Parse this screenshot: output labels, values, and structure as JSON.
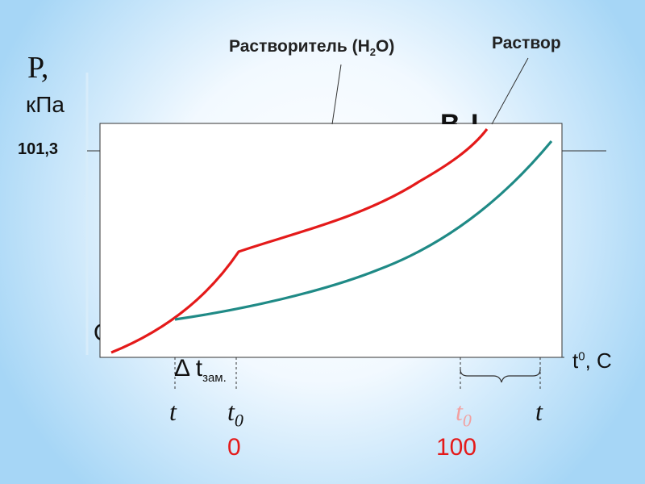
{
  "labels": {
    "y_axis": "P,",
    "y_unit": "кПа",
    "y_tick": "101,3",
    "solvent_prefix": "Растворитель (H",
    "solvent_sub": "2",
    "solvent_suffix": "O)",
    "solution": "Раствор",
    "x_axis_main": "t",
    "x_axis_sup": "0",
    "x_axis_rest": ", С",
    "delta_freeze_main": "Δ t",
    "delta_freeze_sub": "зам.",
    "point_O": "О",
    "peeking_letters": "В  L"
  },
  "temperature_marks": [
    {
      "symbol": "t",
      "sub": "",
      "value": ""
    },
    {
      "symbol": "t",
      "sub": "0",
      "value": "0"
    },
    {
      "symbol": "t",
      "sub": "0",
      "value": "100"
    },
    {
      "symbol": "t",
      "sub": "",
      "value": ""
    }
  ],
  "colors": {
    "solvent_curve": "#e41a1a",
    "solution_curve": "#1f8a86",
    "highlight_value": "#e41a1a",
    "faded_mark": "#f2a0a0"
  },
  "chart_data": {
    "type": "line",
    "series": [
      {
        "name": "Растворитель (H2O)",
        "shape": "freezing segment then boiling curve, above solution curve"
      },
      {
        "name": "Раствор",
        "shape": "lower vapour pressure curve"
      }
    ],
    "ylabel": "P, кПа",
    "xlabel": "t0, С",
    "y_reference": 101.3,
    "x_reference_values": [
      0,
      100
    ]
  }
}
